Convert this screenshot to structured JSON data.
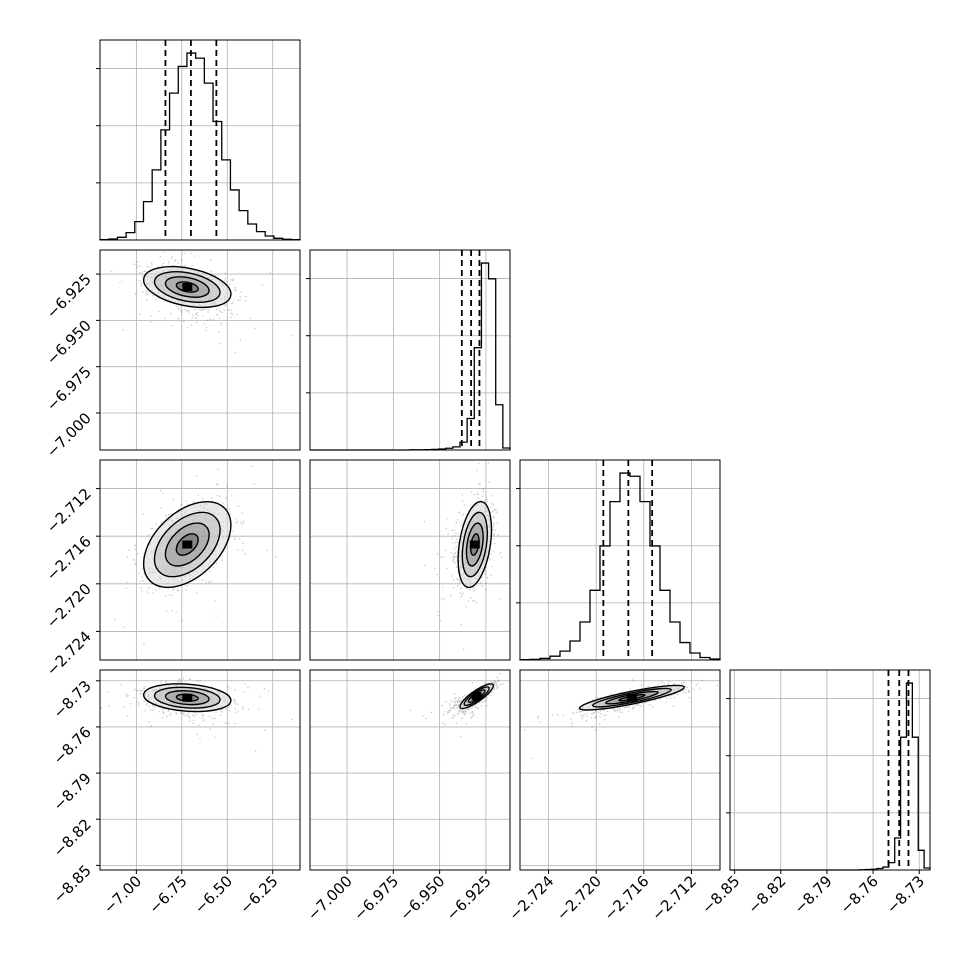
{
  "chart_data": {
    "type": "corner",
    "grid": true,
    "colors": {
      "line": "#000000",
      "grid": "#b0b0b0",
      "points": "#000000"
    },
    "parameters": [
      {
        "index": 0,
        "range": [
          -7.2,
          -6.1
        ],
        "ticks": [
          -7.0,
          -6.75,
          -6.5,
          -6.25
        ],
        "tick_labels": [
          "−7.00",
          "−6.75",
          "−6.50",
          "−6.25"
        ],
        "quantiles": [
          -6.84,
          -6.7,
          -6.56
        ],
        "mean": -6.7,
        "sd": 0.13,
        "skew": 0
      },
      {
        "index": 1,
        "range": [
          -7.02,
          -6.912
        ],
        "ticks": [
          -7.0,
          -6.975,
          -6.95,
          -6.925
        ],
        "tick_labels": [
          "−7.000",
          "−6.975",
          "−6.950",
          "−6.925"
        ],
        "quantiles": [
          -6.938,
          -6.933,
          -6.9285
        ],
        "mean": -6.9328,
        "sd": 0.0052,
        "skew": -1
      },
      {
        "index": 2,
        "range": [
          -2.7264,
          -2.7096
        ],
        "ticks": [
          -2.724,
          -2.72,
          -2.716,
          -2.712
        ],
        "tick_labels": [
          "−2.724",
          "−2.720",
          "−2.716",
          "−2.712"
        ],
        "quantiles": [
          -2.7194,
          -2.7173,
          -2.7153
        ],
        "mean": -2.7173,
        "sd": 0.0019,
        "skew": 0
      },
      {
        "index": 3,
        "range": [
          -8.853,
          -8.723
        ],
        "ticks": [
          -8.85,
          -8.82,
          -8.79,
          -8.76,
          -8.73
        ],
        "tick_labels": [
          "−8.85",
          "−8.82",
          "−8.79",
          "−8.76",
          "−8.73"
        ],
        "quantiles": [
          -8.75,
          -8.743,
          -8.737
        ],
        "mean": -8.743,
        "sd": 0.006,
        "skew": -1
      }
    ],
    "histograms": [
      {
        "param": 0,
        "counts": [
          1,
          3,
          8,
          22,
          55,
          115,
          210,
          330,
          440,
          520,
          560,
          545,
          470,
          355,
          240,
          150,
          88,
          48,
          25,
          12,
          5,
          2,
          1
        ]
      },
      {
        "param": 1,
        "counts": [
          0,
          0,
          0,
          0,
          0,
          0,
          0,
          0,
          0,
          0,
          0,
          0,
          0,
          0,
          1,
          1,
          2,
          3,
          5,
          9,
          16,
          40,
          160,
          520,
          950,
          870,
          230,
          10
        ]
      },
      {
        "param": 2,
        "counts": [
          1,
          2,
          5,
          12,
          28,
          60,
          120,
          220,
          360,
          500,
          590,
          580,
          500,
          360,
          220,
          120,
          55,
          22,
          8,
          3
        ]
      },
      {
        "param": 3,
        "counts": [
          0,
          0,
          0,
          0,
          0,
          0,
          0,
          0,
          0,
          0,
          0,
          0,
          0,
          0,
          0,
          0,
          0,
          0,
          0,
          0,
          0,
          0,
          1,
          2,
          3,
          6,
          12,
          30,
          130,
          540,
          760,
          540,
          80,
          8
        ]
      }
    ],
    "pairs": [
      {
        "x": 0,
        "y": 1,
        "center": [
          -6.72,
          -6.932
        ],
        "sd": [
          0.12,
          0.0055
        ],
        "corr": -0.35
      },
      {
        "x": 0,
        "y": 2,
        "center": [
          -6.72,
          -2.7167
        ],
        "sd": [
          0.12,
          0.0018
        ],
        "corr": 0.45
      },
      {
        "x": 1,
        "y": 2,
        "center": [
          -6.931,
          -2.7167
        ],
        "sd": [
          0.0045,
          0.0018
        ],
        "corr": 0.35
      },
      {
        "x": 0,
        "y": 3,
        "center": [
          -6.72,
          -8.741
        ],
        "sd": [
          0.12,
          0.0045
        ],
        "corr": -0.2
      },
      {
        "x": 1,
        "y": 3,
        "center": [
          -6.93,
          -8.74
        ],
        "sd": [
          0.0045,
          0.004
        ],
        "corr": 0.85
      },
      {
        "x": 2,
        "y": 3,
        "center": [
          -2.717,
          -8.741
        ],
        "sd": [
          0.0022,
          0.004
        ],
        "corr": 0.85
      }
    ],
    "contour_levels": [
      0.5,
      1.0,
      1.5,
      2.0
    ]
  }
}
